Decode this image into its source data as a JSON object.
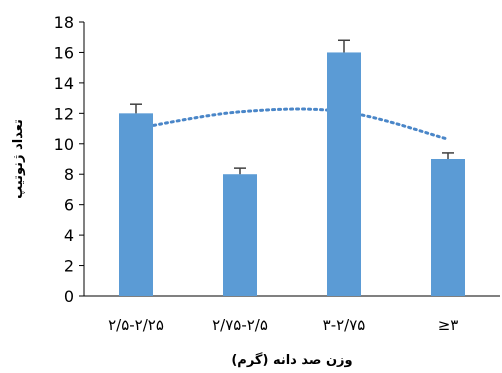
{
  "chart_data": {
    "type": "bar",
    "categories": [
      "۲/۵-۲/۲۵",
      "۲/۷۵-۲/۵",
      "۳-۲/۷۵",
      "≥۳"
    ],
    "values": [
      12,
      8,
      16,
      9
    ],
    "error": [
      0.6,
      0.4,
      0.8,
      0.4
    ],
    "trend": [
      11.0,
      12.1,
      12.1,
      10.3
    ],
    "xlabel": "وزن صد دانه (گرم)",
    "ylabel": "تعداد ژنوتیپ",
    "ylim": [
      0,
      18
    ],
    "yticks": [
      0,
      2,
      4,
      6,
      8,
      10,
      12,
      14,
      16,
      18
    ],
    "bar_color": "#5b9bd5",
    "error_color": "#404040",
    "trend_color": "#4a86c8",
    "grid": false,
    "legend": "none"
  }
}
